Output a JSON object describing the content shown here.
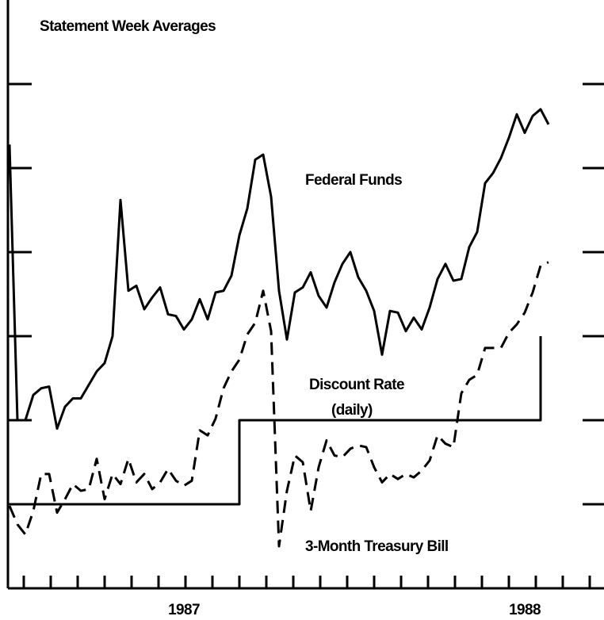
{
  "chart_data": {
    "type": "line",
    "title": "Statement Week Averages",
    "categories": [
      null,
      null,
      null,
      null,
      null,
      null,
      null,
      null,
      null,
      null,
      null,
      null,
      null,
      null,
      null,
      null,
      null,
      null,
      null,
      null,
      null,
      null,
      "1987",
      null,
      null,
      null,
      null,
      null,
      null,
      null,
      null,
      null,
      null,
      null,
      null,
      null,
      null,
      null,
      null,
      null,
      null,
      null,
      null,
      null,
      null,
      null,
      null,
      null,
      null,
      null,
      null,
      null,
      null,
      null,
      null,
      null,
      null,
      null,
      null,
      null,
      null,
      null,
      null,
      null,
      null,
      "1988",
      null,
      null,
      null
    ],
    "series": [
      {
        "name": "Federal Funds",
        "color": "#000000",
        "dashed": false,
        "step": false,
        "values": [
          7.64,
          6.0,
          6.0,
          6.15,
          6.19,
          6.2,
          5.95,
          6.08,
          6.13,
          6.13,
          6.21,
          6.29,
          6.34,
          6.5,
          7.31,
          6.77,
          6.8,
          6.66,
          6.73,
          6.79,
          6.63,
          6.62,
          6.54,
          6.6,
          6.72,
          6.6,
          6.76,
          6.77,
          6.86,
          7.1,
          7.26,
          7.55,
          7.58,
          7.33,
          6.77,
          6.48,
          6.76,
          6.79,
          6.88,
          6.74,
          6.67,
          6.82,
          6.93,
          7.0,
          6.85,
          6.77,
          6.65,
          6.39,
          6.65,
          6.64,
          6.53,
          6.61,
          6.54,
          6.67,
          6.84,
          6.93,
          6.83,
          6.84,
          7.03,
          7.12,
          7.41,
          7.47,
          7.56,
          7.68,
          7.82,
          7.71,
          7.81,
          7.85,
          7.76
        ]
      },
      {
        "name": "Discount Rate",
        "color": "#000000",
        "dashed": false,
        "step": true,
        "values": [
          5.5,
          5.5,
          5.5,
          5.5,
          5.5,
          5.5,
          5.5,
          5.5,
          5.5,
          5.5,
          5.5,
          5.5,
          5.5,
          5.5,
          5.5,
          5.5,
          5.5,
          5.5,
          5.5,
          5.5,
          5.5,
          5.5,
          5.5,
          5.5,
          5.5,
          5.5,
          5.5,
          5.5,
          5.5,
          6.0,
          6.0,
          6.0,
          6.0,
          6.0,
          6.0,
          6.0,
          6.0,
          6.0,
          6.0,
          6.0,
          6.0,
          6.0,
          6.0,
          6.0,
          6.0,
          6.0,
          6.0,
          6.0,
          6.0,
          6.0,
          6.0,
          6.0,
          6.0,
          6.0,
          6.0,
          6.0,
          6.0,
          6.0,
          6.0,
          6.0,
          6.0,
          6.0,
          6.0,
          6.0,
          6.0,
          6.0,
          6.0,
          6.5,
          null
        ]
      },
      {
        "name": "3-Month Treasury Bill",
        "color": "#000000",
        "dashed": true,
        "step": false,
        "values": [
          5.49,
          5.38,
          5.32,
          5.46,
          5.68,
          5.68,
          5.45,
          5.53,
          5.62,
          5.58,
          5.59,
          5.77,
          5.53,
          5.68,
          5.62,
          5.77,
          5.63,
          5.68,
          5.59,
          5.63,
          5.71,
          5.64,
          5.61,
          5.64,
          5.94,
          5.91,
          6.01,
          6.19,
          6.29,
          6.36,
          6.51,
          6.58,
          6.77,
          6.53,
          5.25,
          5.58,
          5.79,
          5.75,
          5.46,
          5.72,
          5.88,
          5.79,
          5.78,
          5.83,
          5.85,
          5.84,
          5.72,
          5.63,
          5.68,
          5.65,
          5.68,
          5.66,
          5.7,
          5.76,
          5.91,
          5.86,
          5.84,
          6.16,
          6.24,
          6.27,
          6.43,
          6.43,
          6.43,
          6.52,
          6.57,
          6.64,
          6.76,
          6.92,
          6.94
        ]
      }
    ],
    "annotations": [
      "(daily)"
    ],
    "ylim": [
      5.0,
      8.5
    ],
    "yticks": [
      5.5,
      6.0,
      6.5,
      7.0,
      7.5,
      8.0
    ],
    "grid": false
  }
}
